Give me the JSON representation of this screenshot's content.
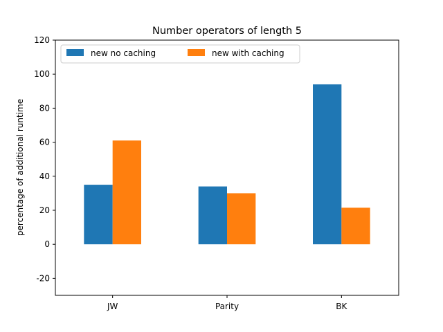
{
  "chart_data": {
    "type": "bar",
    "title": "Number operators of length 5",
    "xlabel": "",
    "ylabel": "percentage of additional runtime",
    "categories": [
      "JW",
      "Parity",
      "BK"
    ],
    "series": [
      {
        "name": "new no caching",
        "values": [
          35,
          34,
          94
        ],
        "color": "#1f77b4"
      },
      {
        "name": "new with caching",
        "values": [
          61,
          30,
          21.5
        ],
        "color": "#ff7f0e"
      }
    ],
    "ylim": [
      -30,
      120
    ],
    "yticks": [
      -20,
      0,
      20,
      40,
      60,
      80,
      100,
      120
    ],
    "legend": "top-left",
    "grid": false
  }
}
